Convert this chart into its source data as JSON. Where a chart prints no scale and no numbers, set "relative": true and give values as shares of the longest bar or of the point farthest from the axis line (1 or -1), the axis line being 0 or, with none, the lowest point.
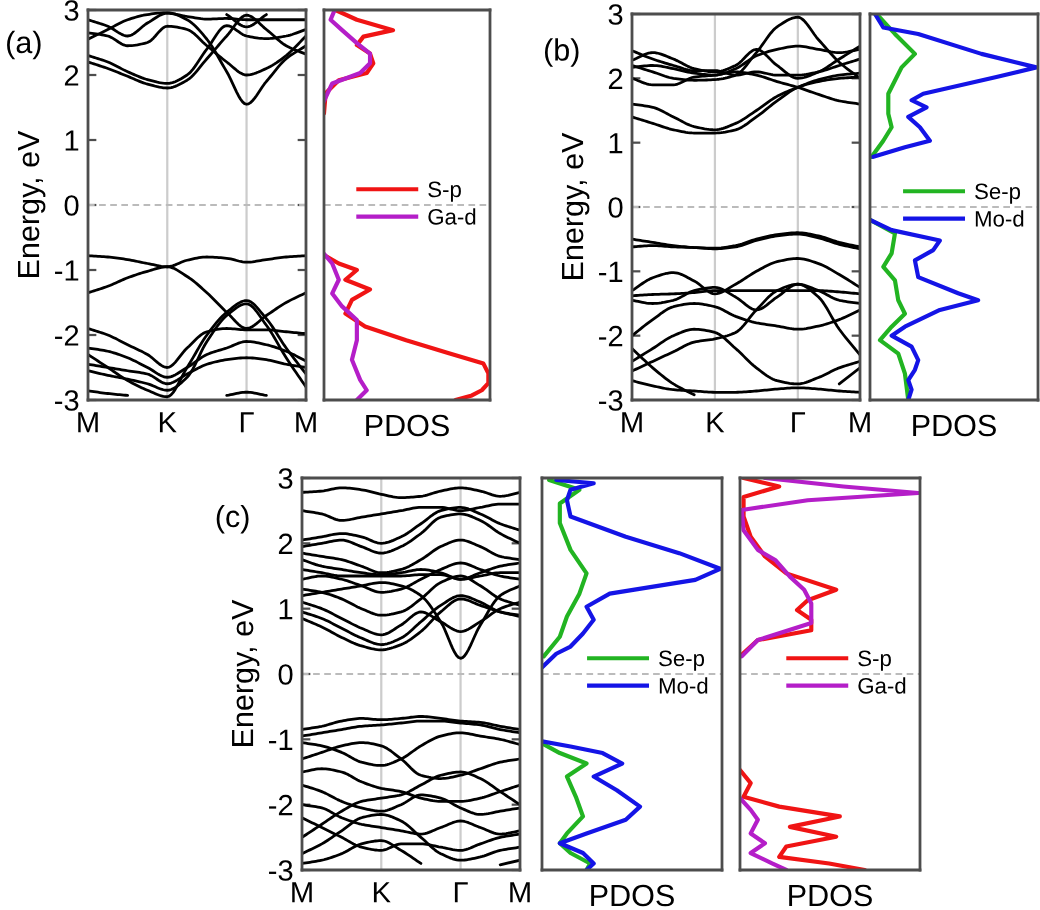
{
  "chart_data": [
    {
      "type": "line",
      "ylabel": "Energy, eV",
      "annotations": [
        "(a)"
      ],
      "categories": [
        "M",
        null,
        null,
        null,
        "K",
        null,
        null,
        null,
        "Γ",
        null,
        null,
        "M"
      ],
      "series": [
        {
          "color": "#000000",
          "values": [
            2.2,
            2.1,
            1.98,
            1.86,
            1.8,
            1.92,
            2.25,
            2.6,
            2.92,
            2.7,
            2.45,
            2.32
          ]
        },
        {
          "color": "#000000",
          "values": [
            2.3,
            2.2,
            2.05,
            1.93,
            1.87,
            2.0,
            2.4,
            2.76,
            2.6,
            2.56,
            2.6,
            2.7
          ]
        },
        {
          "color": "#000000",
          "values": [
            2.55,
            2.7,
            2.85,
            2.93,
            2.96,
            2.85,
            2.55,
            2.05,
            1.55,
            1.9,
            2.25,
            2.45
          ]
        },
        {
          "color": "#000000",
          "values": [
            2.65,
            2.6,
            2.45,
            2.5,
            2.75,
            2.7,
            2.45,
            2.2,
            2.0,
            2.1,
            2.3,
            2.6
          ]
        },
        {
          "color": "#000000",
          "values": [
            2.85,
            2.75,
            2.6,
            2.8,
            2.95,
            2.9,
            2.86,
            2.87,
            2.85,
            2.85,
            2.85,
            2.85
          ]
        },
        {
          "color": "#000000",
          "values": [
            null,
            null,
            null,
            null,
            null,
            null,
            null,
            2.93,
            2.74,
            2.93,
            null,
            null
          ]
        },
        {
          "color": "#000000",
          "values": [
            -0.78,
            -0.8,
            -0.84,
            -0.9,
            -0.95,
            -0.85,
            -0.8,
            -0.82,
            -0.88,
            -0.84,
            -0.8,
            -0.78
          ]
        },
        {
          "color": "#000000",
          "values": [
            -1.35,
            -1.25,
            -1.12,
            -1.02,
            -0.95,
            -1.1,
            -1.35,
            -1.65,
            -1.9,
            -1.7,
            -1.5,
            -1.35
          ]
        },
        {
          "color": "#000000",
          "values": [
            -2.3,
            -2.5,
            -2.7,
            -2.85,
            -2.95,
            -2.5,
            -2.0,
            -1.65,
            -1.47,
            -1.75,
            -2.2,
            -2.6
          ]
        },
        {
          "color": "#000000",
          "values": [
            -2.55,
            -2.62,
            -2.68,
            -2.75,
            -2.85,
            -2.65,
            -2.1,
            -1.7,
            -1.52,
            -1.85,
            -2.35,
            -2.8
          ]
        },
        {
          "color": "#000000",
          "values": [
            -1.9,
            -2.0,
            -2.15,
            -2.3,
            -2.5,
            -2.2,
            -1.95,
            -1.9,
            -1.92,
            -1.92,
            -1.95,
            -1.98
          ]
        },
        {
          "color": "#000000",
          "values": [
            -2.2,
            -2.25,
            -2.35,
            -2.5,
            -2.65,
            -2.5,
            -2.3,
            -2.2,
            -2.1,
            -2.15,
            -2.25,
            -2.4
          ]
        },
        {
          "color": "#000000",
          "values": [
            -2.45,
            -2.5,
            -2.55,
            -2.6,
            -2.75,
            -2.6,
            -2.45,
            -2.38,
            -2.35,
            -2.38,
            -2.45,
            -2.5
          ]
        },
        {
          "color": "#000000",
          "values": [
            null,
            null,
            null,
            null,
            null,
            null,
            null,
            -2.93,
            -2.88,
            -2.93,
            null,
            null
          ]
        },
        {
          "color": "#000000",
          "values": [
            -2.86,
            -2.9,
            -2.93,
            null,
            null,
            null,
            null,
            null,
            null,
            null,
            null,
            null
          ]
        }
      ],
      "ylim": [
        -3,
        3
      ],
      "yticks": [
        -3,
        -2,
        -1,
        0,
        1,
        2,
        3
      ],
      "grid": "x",
      "ref_lines": [
        {
          "axis": "y",
          "value": 0,
          "color": "#bbbbbb",
          "line_style": "dashed"
        }
      ]
    },
    {
      "type": "line",
      "orientation": "horizontal",
      "xlabel": "PDOS",
      "relative": true,
      "ylim": [
        -3,
        3
      ],
      "yticks": [
        -3,
        -2,
        -1,
        0,
        1,
        2,
        3
      ],
      "tick_labels": false,
      "legend": "center right",
      "ref_lines": [
        {
          "axis": "y",
          "value": 0,
          "color": "#bbbbbb",
          "line_style": "dashed"
        }
      ],
      "series": [
        {
          "name": "S-p",
          "color": "#f01414",
          "x": [
            3.0,
            2.85,
            2.69,
            2.59,
            2.46,
            2.33,
            2.18,
            2.03,
            1.92,
            1.72,
            1.41,
            null,
            -0.77,
            -0.9,
            -1.0,
            -1.15,
            -1.3,
            -1.46,
            -1.67,
            -1.87,
            -2.08,
            -2.28,
            -2.44,
            -2.59,
            -2.74,
            -2.85,
            -2.93,
            -3.0
          ],
          "values": [
            0.07,
            0.2,
            0.42,
            0.24,
            0.2,
            0.28,
            0.3,
            0.26,
            0.09,
            0.01,
            0.0,
            null,
            0.0,
            0.09,
            0.2,
            0.13,
            0.28,
            0.17,
            0.13,
            0.25,
            0.5,
            0.76,
            0.97,
            1.0,
            1.0,
            0.96,
            0.9,
            0.8
          ]
        },
        {
          "name": "Ga-d",
          "color": "#b41ec8",
          "x": [
            3.0,
            2.85,
            2.69,
            2.49,
            2.33,
            2.18,
            2.03,
            1.87,
            1.6,
            null,
            -0.75,
            -0.9,
            -1.15,
            -1.36,
            -1.56,
            -1.77,
            -2.08,
            -2.38,
            -2.69,
            -2.85,
            -3.0
          ],
          "values": [
            0.065,
            0.04,
            0.11,
            0.2,
            0.28,
            0.28,
            0.22,
            0.05,
            0.0,
            null,
            0.0,
            0.05,
            0.09,
            0.05,
            0.11,
            0.2,
            0.2,
            0.17,
            0.22,
            0.26,
            0.2
          ]
        }
      ]
    },
    {
      "type": "line",
      "ylabel": "Energy, eV",
      "annotations": [
        "(b)"
      ],
      "categories": [
        "M",
        null,
        null,
        null,
        "K",
        null,
        null,
        null,
        "Γ",
        null,
        null,
        "M"
      ],
      "series": [
        {
          "color": "#000000",
          "values": [
            2.2,
            2.1,
            2.0,
            1.97,
            1.98,
            2.05,
            2.4,
            2.8,
            2.95,
            2.6,
            2.25,
            2.0
          ]
        },
        {
          "color": "#000000",
          "values": [
            1.4,
            1.3,
            1.2,
            1.15,
            1.15,
            1.2,
            1.4,
            1.65,
            1.86,
            1.95,
            2.0,
            2.02
          ]
        },
        {
          "color": "#000000",
          "values": [
            1.6,
            1.55,
            1.4,
            1.25,
            1.2,
            1.3,
            1.5,
            1.72,
            1.86,
            1.98,
            2.05,
            2.08
          ]
        },
        {
          "color": "#000000",
          "values": [
            2.0,
            1.9,
            1.9,
            2.02,
            2.05,
            2.1,
            2.05,
            1.95,
            1.86,
            1.75,
            1.65,
            1.6
          ]
        },
        {
          "color": "#000000",
          "values": [
            2.17,
            2.2,
            2.15,
            2.08,
            2.05,
            2.15,
            2.35,
            2.45,
            2.5,
            2.45,
            2.4,
            2.45
          ]
        },
        {
          "color": "#000000",
          "values": [
            2.28,
            2.4,
            2.3,
            2.15,
            2.1,
            2.2,
            2.45,
            2.2,
            2.0,
            2.1,
            2.3,
            2.5
          ]
        },
        {
          "color": "#000000",
          "values": [
            2.43,
            2.3,
            2.2,
            2.12,
            2.12,
            2.05,
            2.1,
            2.05,
            2.05,
            2.1,
            2.2,
            2.3
          ]
        },
        {
          "color": "#000000",
          "values": [
            -0.5,
            -0.55,
            -0.6,
            -0.63,
            -0.64,
            -0.6,
            -0.5,
            -0.43,
            -0.4,
            -0.45,
            -0.55,
            -0.62
          ]
        },
        {
          "color": "#000000",
          "values": [
            -0.62,
            -0.6,
            -0.62,
            -0.63,
            -0.65,
            -0.62,
            -0.52,
            -0.45,
            -0.42,
            -0.48,
            -0.58,
            -0.65
          ]
        },
        {
          "color": "#000000",
          "values": [
            -1.3,
            -1.1,
            -1.02,
            -1.15,
            -1.35,
            -1.2,
            -1.0,
            -0.85,
            -0.8,
            -0.88,
            -1.05,
            -1.25
          ]
        },
        {
          "color": "#000000",
          "values": [
            -1.45,
            -1.5,
            -1.45,
            -1.3,
            -1.25,
            -1.4,
            -1.6,
            -1.4,
            -1.2,
            -1.3,
            -1.45,
            -1.5
          ]
        },
        {
          "color": "#000000",
          "values": [
            -1.38,
            -1.36,
            -1.35,
            -1.33,
            -1.3,
            -1.3,
            -1.3,
            -1.3,
            -1.3,
            -1.3,
            -1.32,
            -1.35
          ]
        },
        {
          "color": "#000000",
          "values": [
            -2.0,
            -1.75,
            -1.55,
            -1.5,
            -1.55,
            -1.7,
            -1.8,
            -1.85,
            -1.9,
            -1.85,
            -1.75,
            -1.6
          ]
        },
        {
          "color": "#000000",
          "values": [
            -2.4,
            -2.2,
            -2.0,
            -1.9,
            -1.95,
            -2.2,
            -2.5,
            -2.7,
            -2.75,
            -2.65,
            -2.5,
            -2.4
          ]
        },
        {
          "color": "#000000",
          "values": [
            -2.55,
            -2.4,
            -2.25,
            -2.1,
            -2.05,
            -1.95,
            -1.6,
            -1.3,
            -1.2,
            -1.4,
            -1.9,
            -2.3
          ]
        },
        {
          "color": "#000000",
          "values": [
            -2.7,
            -2.78,
            -2.84,
            -2.86,
            -2.88,
            -2.88,
            -2.86,
            -2.83,
            -2.81,
            -2.83,
            -2.86,
            -2.88
          ]
        },
        {
          "color": "#000000",
          "values": [
            -2.2,
            -2.5,
            -2.75,
            -2.92,
            null,
            null,
            null,
            null,
            null,
            null,
            -2.75,
            -2.5
          ]
        }
      ],
      "ylim": [
        -3,
        3
      ],
      "yticks": [
        -3,
        -2,
        -1,
        0,
        1,
        2,
        3
      ],
      "grid": "x",
      "ref_lines": [
        {
          "axis": "y",
          "value": 0,
          "color": "#bbbbbb",
          "line_style": "dashed"
        }
      ]
    },
    {
      "type": "line",
      "orientation": "horizontal",
      "xlabel": "PDOS",
      "relative": true,
      "ylim": [
        -3,
        3
      ],
      "yticks": [
        -3,
        -2,
        -1,
        0,
        1,
        2,
        3
      ],
      "tick_labels": false,
      "legend": "center right",
      "ref_lines": [
        {
          "axis": "y",
          "value": 0,
          "color": "#bbbbbb",
          "line_style": "dashed"
        }
      ],
      "series": [
        {
          "name": "Se-p",
          "color": "#22b422",
          "x": [
            3.0,
            2.69,
            2.38,
            2.17,
            1.76,
            1.45,
            1.24,
            1.03,
            0.78,
            null,
            -0.2,
            -0.41,
            -0.72,
            -0.93,
            -1.14,
            -1.45,
            -1.66,
            -1.86,
            -2.07,
            -2.28,
            -2.59,
            -3.0
          ],
          "values": [
            0.04,
            0.15,
            0.27,
            0.19,
            0.11,
            0.11,
            0.13,
            0.08,
            0.01,
            null,
            0.0,
            0.15,
            0.13,
            0.08,
            0.15,
            0.17,
            0.21,
            0.13,
            0.06,
            0.17,
            0.21,
            0.23
          ]
        },
        {
          "name": "Mo-d",
          "color": "#1414e6",
          "x": [
            3.0,
            2.79,
            2.69,
            2.38,
            2.17,
            2.02,
            1.76,
            1.66,
            1.55,
            1.4,
            1.24,
            1.03,
            0.93,
            0.78,
            null,
            -0.2,
            -0.36,
            -0.52,
            -0.67,
            -0.83,
            -1.09,
            -1.34,
            -1.45,
            -1.6,
            -1.86,
            -2.0,
            -2.17,
            -2.38,
            -2.53,
            -2.69,
            -2.84,
            -3.0
          ],
          "values": [
            0.03,
            0.08,
            0.29,
            0.67,
            1.0,
            0.76,
            0.32,
            0.25,
            0.34,
            0.23,
            0.3,
            0.36,
            0.21,
            0.02,
            null,
            0.0,
            0.13,
            0.42,
            0.38,
            0.27,
            0.29,
            0.53,
            0.65,
            0.42,
            0.21,
            0.13,
            0.25,
            0.29,
            0.27,
            0.23,
            0.25,
            0.23
          ]
        }
      ]
    },
    {
      "type": "line",
      "ylabel": "Energy, eV",
      "annotations": [
        "(c)"
      ],
      "categories": [
        "M",
        null,
        null,
        null,
        "K",
        null,
        null,
        null,
        "Γ",
        null,
        null,
        "M"
      ],
      "series": [
        {
          "color": "#000000",
          "values": [
            2.78,
            2.8,
            2.85,
            2.82,
            2.75,
            2.7,
            2.72,
            2.8,
            2.85,
            2.8,
            2.72,
            2.78
          ]
        },
        {
          "color": "#000000",
          "values": [
            2.5,
            2.45,
            2.35,
            2.4,
            2.45,
            2.5,
            2.55,
            2.55,
            2.5,
            2.55,
            2.6,
            2.6
          ]
        },
        {
          "color": "#000000",
          "values": [
            2.05,
            2.1,
            2.15,
            2.1,
            2.0,
            2.1,
            2.3,
            2.5,
            2.55,
            2.45,
            2.3,
            2.2
          ]
        },
        {
          "color": "#000000",
          "values": [
            1.95,
            2.0,
            2.05,
            1.95,
            1.85,
            1.95,
            2.15,
            2.4,
            2.45,
            2.35,
            2.15,
            2.0
          ]
        },
        {
          "color": "#000000",
          "values": [
            1.85,
            1.8,
            1.75,
            1.65,
            1.55,
            1.6,
            1.75,
            1.95,
            2.05,
            1.95,
            1.8,
            1.75
          ]
        },
        {
          "color": "#000000",
          "values": [
            1.75,
            1.65,
            1.6,
            1.55,
            1.52,
            1.55,
            1.6,
            1.55,
            1.45,
            1.55,
            1.65,
            1.7
          ]
        },
        {
          "color": "#000000",
          "values": [
            1.6,
            1.55,
            1.5,
            1.5,
            1.5,
            1.5,
            1.52,
            1.52,
            1.45,
            1.5,
            1.55,
            1.55
          ]
        },
        {
          "color": "#000000",
          "values": [
            1.45,
            1.5,
            1.45,
            1.35,
            1.25,
            1.3,
            1.45,
            1.6,
            1.7,
            1.6,
            1.5,
            1.45
          ]
        },
        {
          "color": "#000000",
          "values": [
            1.3,
            1.25,
            1.15,
            1.0,
            0.9,
            0.95,
            1.15,
            1.4,
            1.5,
            1.35,
            1.15,
            1.05
          ]
        },
        {
          "color": "#000000",
          "values": [
            1.1,
            1.0,
            0.85,
            0.7,
            0.6,
            0.75,
            0.95,
            0.8,
            0.65,
            0.8,
            1.0,
            1.1
          ]
        },
        {
          "color": "#000000",
          "values": [
            0.95,
            0.85,
            0.7,
            0.55,
            0.45,
            0.55,
            0.8,
            1.05,
            1.2,
            1.1,
            0.95,
            0.9
          ]
        },
        {
          "color": "#000000",
          "values": [
            0.85,
            0.72,
            0.56,
            0.43,
            0.37,
            0.45,
            0.65,
            0.95,
            1.15,
            1.05,
            0.95,
            0.88
          ]
        },
        {
          "color": "#000000",
          "values": [
            1.2,
            1.25,
            1.3,
            1.35,
            1.4,
            1.35,
            1.2,
            0.8,
            0.24,
            0.75,
            1.2,
            1.35
          ]
        },
        {
          "color": "#000000",
          "values": [
            -0.85,
            -0.8,
            -0.72,
            -0.68,
            -0.7,
            -0.68,
            -0.65,
            -0.68,
            -0.72,
            -0.74,
            -0.8,
            -0.85
          ]
        },
        {
          "color": "#000000",
          "values": [
            -0.95,
            -0.9,
            -0.85,
            -0.8,
            -0.78,
            -0.75,
            -0.72,
            -0.72,
            -0.75,
            -0.78,
            -0.85,
            -0.9
          ]
        },
        {
          "color": "#000000",
          "values": [
            -1.05,
            -1.1,
            -1.2,
            -1.35,
            -1.4,
            -1.3,
            -1.1,
            -0.95,
            -0.9,
            -0.95,
            -1.0,
            -1.08
          ]
        },
        {
          "color": "#000000",
          "values": [
            -1.3,
            -1.2,
            -1.1,
            -1.05,
            -1.1,
            -1.3,
            -1.55,
            -1.6,
            -1.55,
            -1.45,
            -1.35,
            -1.3
          ]
        },
        {
          "color": "#000000",
          "values": [
            -2.5,
            -2.3,
            -2.1,
            -1.95,
            -1.9,
            -1.85,
            -1.7,
            -1.55,
            -1.5,
            -1.6,
            -1.8,
            -2.0
          ]
        },
        {
          "color": "#000000",
          "values": [
            -1.5,
            -1.45,
            -1.5,
            -1.65,
            -1.75,
            -1.8,
            -1.9,
            -1.95,
            -1.95,
            -1.9,
            -1.8,
            -1.7
          ]
        },
        {
          "color": "#000000",
          "values": [
            -1.7,
            -1.8,
            -1.95,
            -2.05,
            -2.1,
            -2.0,
            -1.85,
            -1.9,
            -2.05,
            -2.15,
            -2.1,
            -2.05
          ]
        },
        {
          "color": "#000000",
          "values": [
            -2.0,
            -2.05,
            -2.2,
            -2.3,
            -2.35,
            -2.4,
            -2.45,
            -2.35,
            -2.25,
            -2.35,
            -2.45,
            -2.4
          ]
        },
        {
          "color": "#000000",
          "values": [
            -2.2,
            -2.35,
            -2.5,
            -2.65,
            -2.7,
            -2.6,
            -2.6,
            -2.65,
            -2.7,
            -2.6,
            -2.5,
            -2.45
          ]
        },
        {
          "color": "#000000",
          "values": [
            -2.75,
            -2.6,
            -2.4,
            -2.2,
            -2.15,
            -2.25,
            -2.5,
            -2.75,
            -2.85,
            -2.8,
            -2.7,
            -2.65
          ]
        },
        {
          "color": "#000000",
          "values": [
            -2.9,
            -2.85,
            -2.75,
            -2.6,
            -2.55,
            -2.7,
            -2.9,
            null,
            null,
            null,
            -2.92,
            -2.85
          ]
        }
      ],
      "ylim": [
        -3,
        3
      ],
      "yticks": [
        -3,
        -2,
        -1,
        0,
        1,
        2,
        3
      ],
      "grid": "x",
      "ref_lines": [
        {
          "axis": "y",
          "value": 0,
          "color": "#bbbbbb",
          "line_style": "dashed"
        }
      ]
    },
    {
      "type": "line",
      "orientation": "horizontal",
      "xlabel": "PDOS",
      "relative": true,
      "ylim": [
        -3,
        3
      ],
      "yticks": [
        -3,
        -2,
        -1,
        0,
        1,
        2,
        3
      ],
      "tick_labels": false,
      "legend": "center right",
      "ref_lines": [
        {
          "axis": "y",
          "value": 0,
          "color": "#bbbbbb",
          "line_style": "dashed"
        }
      ],
      "series": [
        {
          "name": "Se-p",
          "color": "#22b422",
          "x": [
            2.97,
            2.82,
            2.61,
            2.31,
            1.9,
            1.54,
            1.23,
            0.88,
            0.57,
            0.27,
            null,
            -1.06,
            -1.21,
            -1.37,
            -1.57,
            -1.88,
            -2.18,
            -2.44,
            -2.59,
            -2.74,
            -2.9,
            -3.0
          ],
          "values": [
            0.04,
            0.21,
            0.1,
            0.1,
            0.16,
            0.25,
            0.21,
            0.14,
            0.1,
            0.01,
            null,
            0.0,
            0.1,
            0.25,
            0.14,
            0.19,
            0.23,
            0.14,
            0.1,
            0.16,
            0.27,
            0.25
          ]
        },
        {
          "name": "Mo-d",
          "color": "#1414e6",
          "x": [
            2.97,
            2.92,
            2.82,
            2.66,
            2.41,
            2.1,
            1.85,
            1.61,
            1.44,
            1.23,
            1.03,
            0.83,
            0.62,
            0.42,
            0.31,
            0.1,
            null,
            -1.03,
            -1.11,
            -1.21,
            -1.37,
            -1.57,
            -1.78,
            -2.03,
            -2.23,
            -2.44,
            -2.59,
            -2.74,
            -2.9,
            -3.0
          ],
          "values": [
            0.08,
            0.29,
            0.16,
            0.14,
            0.16,
            0.47,
            0.77,
            1.0,
            0.86,
            0.38,
            0.25,
            0.29,
            0.23,
            0.16,
            0.08,
            0.0,
            null,
            0.0,
            0.16,
            0.34,
            0.45,
            0.29,
            0.42,
            0.55,
            0.47,
            0.25,
            0.1,
            0.23,
            0.29,
            0.25
          ]
        }
      ]
    },
    {
      "type": "line",
      "orientation": "horizontal",
      "xlabel": "PDOS",
      "relative": true,
      "ylim": [
        -3,
        3
      ],
      "yticks": [
        -3,
        -2,
        -1,
        0,
        1,
        2,
        3
      ],
      "tick_labels": false,
      "legend": "center right",
      "ref_lines": [
        {
          "axis": "y",
          "value": 0,
          "color": "#bbbbbb",
          "line_style": "dashed"
        }
      ],
      "series": [
        {
          "name": "S-p",
          "color": "#f01414",
          "x": [
            3.0,
            2.87,
            2.71,
            2.41,
            2.1,
            1.8,
            1.54,
            1.29,
            1.13,
            0.98,
            0.83,
            0.67,
            0.52,
            0.27,
            null,
            -1.47,
            -1.67,
            -1.88,
            -2.03,
            -2.18,
            -2.34,
            -2.49,
            -2.64,
            -2.8,
            -2.9,
            -3.0
          ],
          "values": [
            0.02,
            0.22,
            0.02,
            0.02,
            0.06,
            0.14,
            0.26,
            0.54,
            0.38,
            0.32,
            0.4,
            0.4,
            0.1,
            0.0,
            null,
            0.0,
            0.06,
            0.02,
            0.22,
            0.56,
            0.28,
            0.54,
            0.26,
            0.22,
            0.5,
            0.7
          ]
        },
        {
          "name": "Ga-d",
          "color": "#b41ec8",
          "x": [
            3.0,
            2.87,
            2.77,
            2.66,
            2.51,
            2.2,
            1.9,
            1.74,
            1.49,
            1.29,
            1.08,
            0.78,
            0.52,
            0.27,
            null,
            -1.9,
            -2.08,
            -2.23,
            -2.44,
            -2.59,
            -2.74,
            -2.9,
            -3.0
          ],
          "values": [
            0.14,
            0.58,
            1.0,
            0.38,
            0.01,
            0.02,
            0.1,
            0.2,
            0.28,
            0.36,
            0.4,
            0.4,
            0.1,
            0.01,
            null,
            0.0,
            0.06,
            0.1,
            0.06,
            0.14,
            0.06,
            0.18,
            0.26
          ]
        }
      ]
    }
  ]
}
